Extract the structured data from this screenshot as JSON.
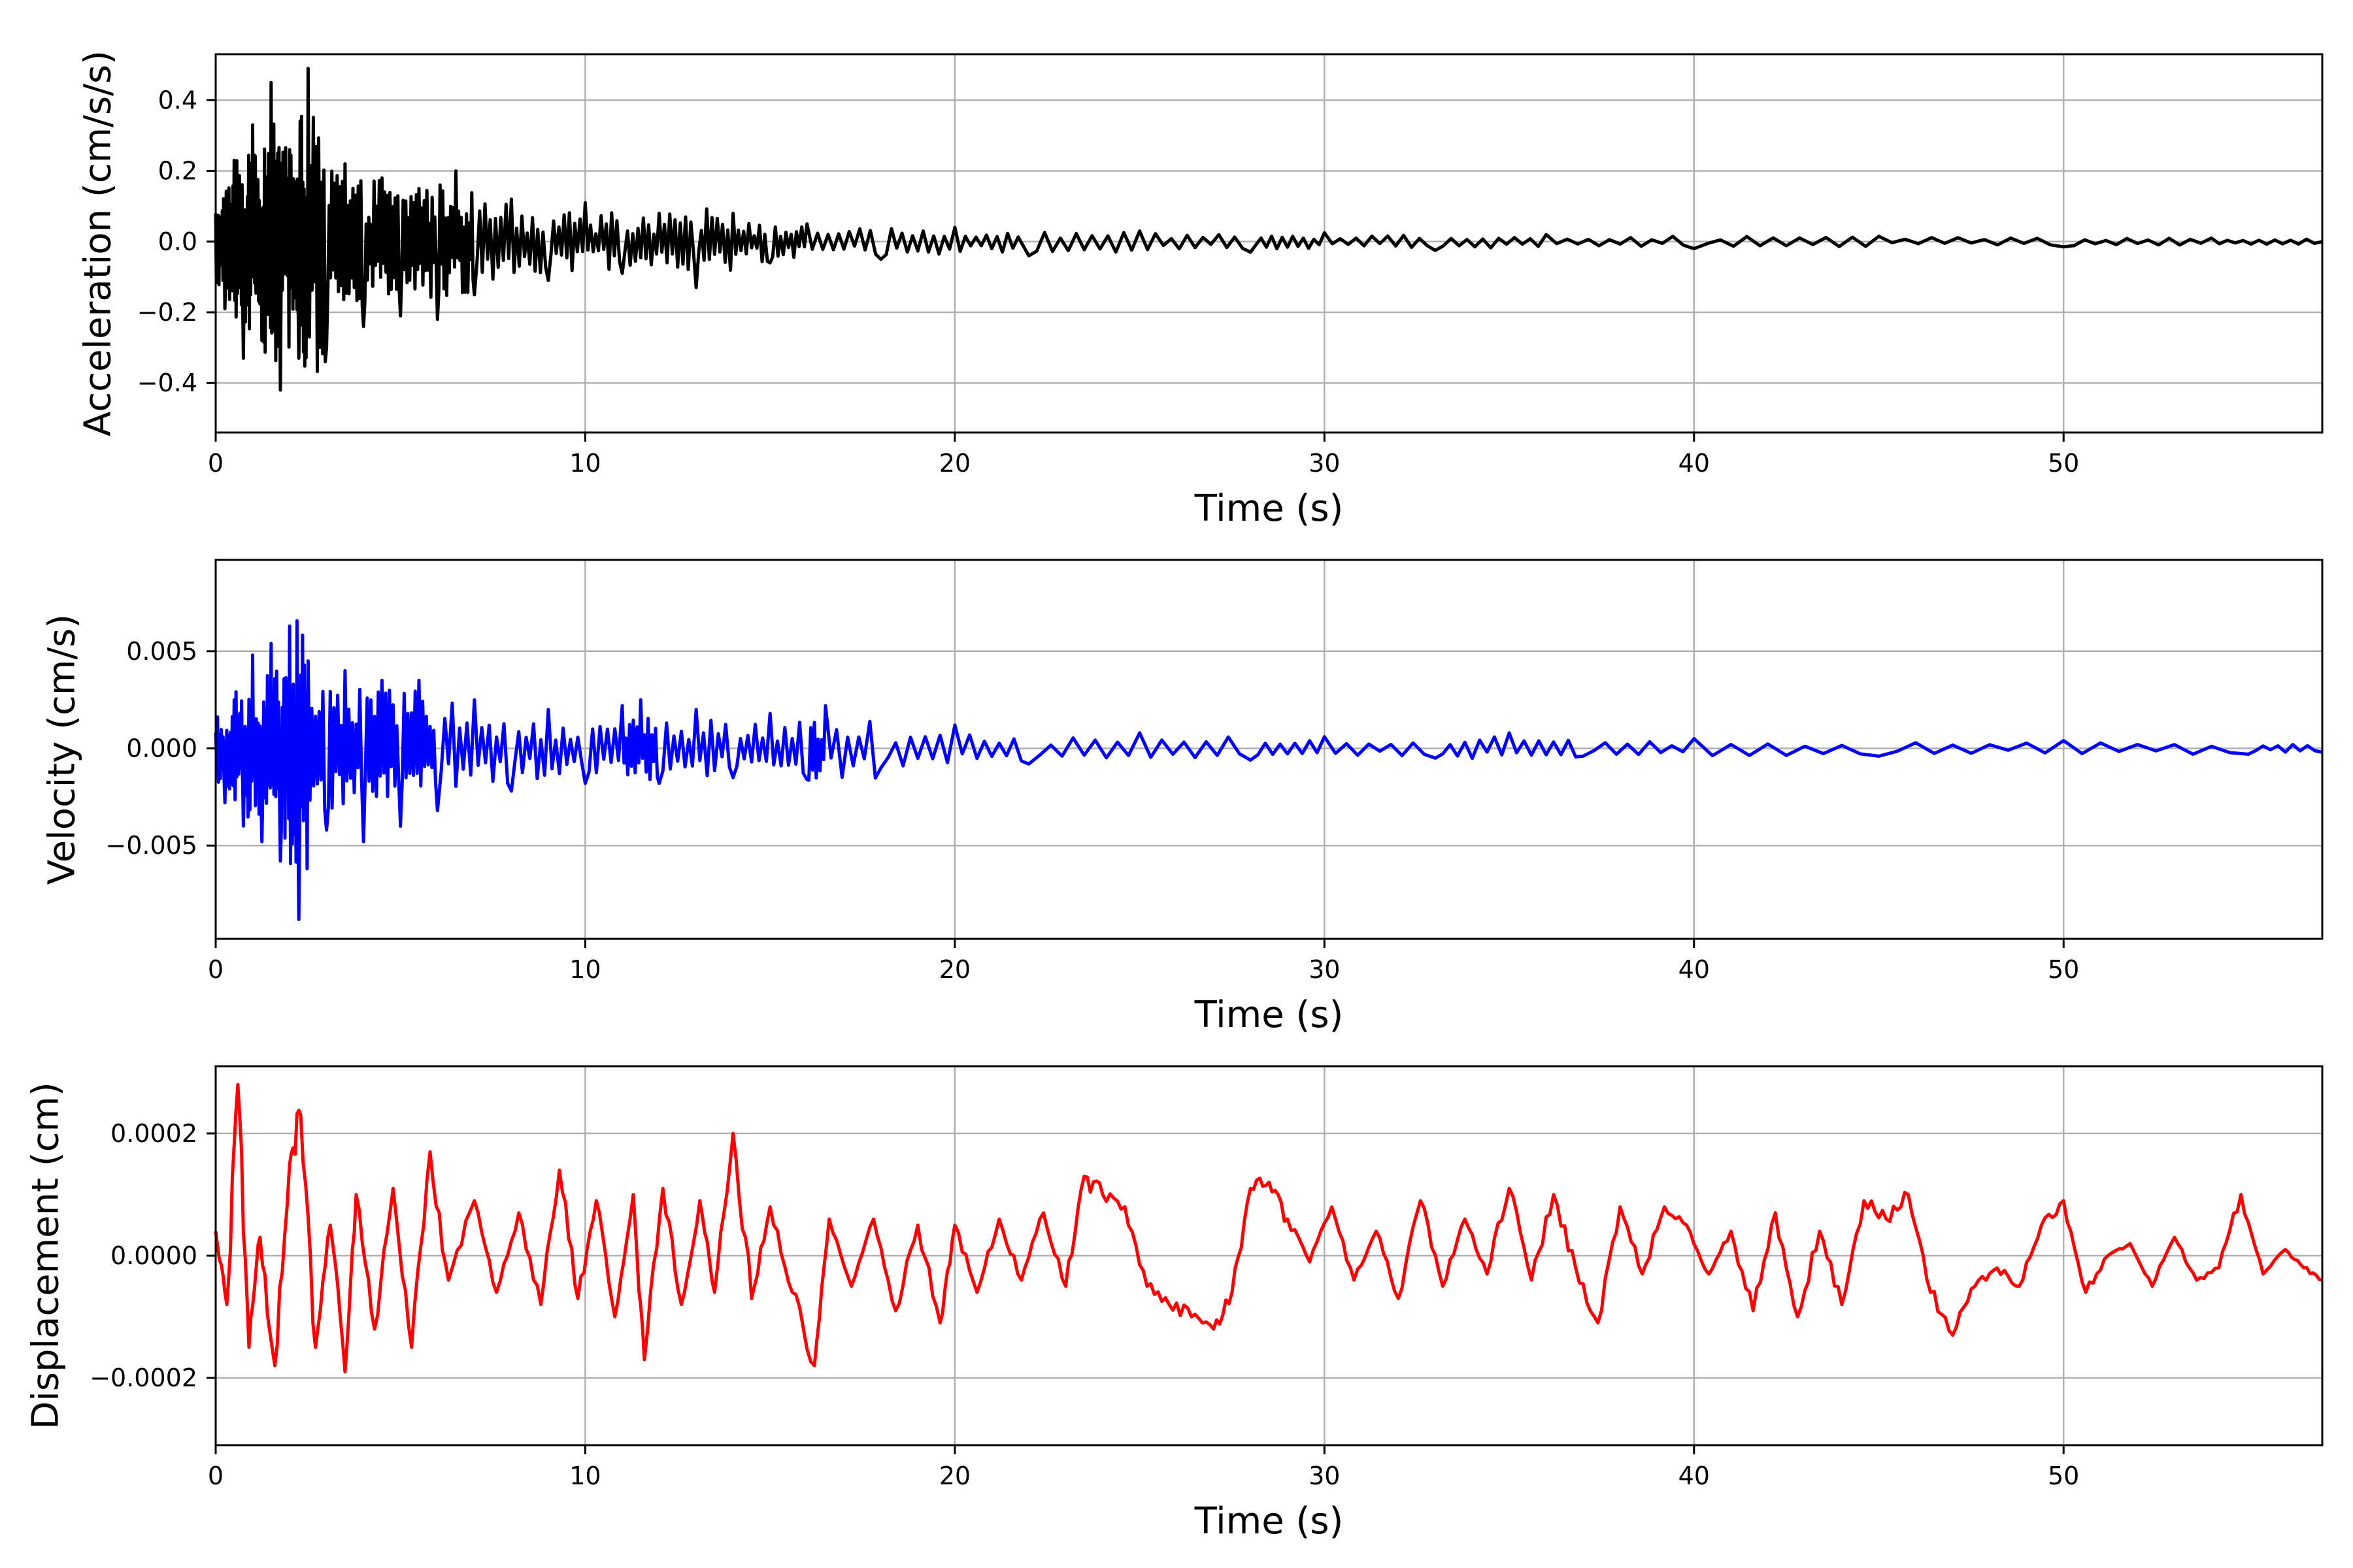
{
  "chart_data": [
    {
      "type": "line",
      "xlabel": "Time (s)",
      "ylabel": "Acceleration (cm/s/s)",
      "xlim": [
        0,
        57
      ],
      "ylim": [
        -0.54,
        0.53
      ],
      "xticks": [
        0,
        10,
        20,
        30,
        40,
        50
      ],
      "xtick_labels": [
        "0",
        "10",
        "20",
        "30",
        "40",
        "50"
      ],
      "yticks": [
        -0.4,
        -0.2,
        0.0,
        0.2,
        0.4
      ],
      "ytick_labels": [
        "−0.4",
        "−0.2",
        "0.0",
        "0.2",
        "0.4"
      ],
      "grid": true,
      "color": "#000000",
      "series": [
        {
          "x": [
            0,
            0.25,
            0.5,
            0.75,
            1.0,
            1.25,
            1.5,
            1.75,
            2.0,
            2.25,
            2.5,
            3.0,
            3.5,
            4.0,
            4.5,
            5.0,
            5.5,
            6.0,
            6.5,
            7.0,
            8.0,
            9.0,
            10.0,
            11.0,
            12.0,
            13.0,
            14.0,
            15.0,
            16.0,
            18.0,
            20.0,
            22.0,
            25.0,
            28.0,
            30.0,
            33.0,
            36.0,
            40.0,
            45.0,
            50.0,
            54.0,
            57.0
          ],
          "values": [
            0.08,
            -0.19,
            0.23,
            -0.33,
            0.33,
            -0.28,
            0.45,
            -0.42,
            0.26,
            -0.33,
            0.49,
            -0.3,
            0.22,
            -0.24,
            0.18,
            -0.21,
            0.15,
            -0.22,
            0.2,
            -0.15,
            0.12,
            -0.11,
            0.11,
            -0.09,
            0.08,
            -0.13,
            0.08,
            -0.06,
            0.05,
            -0.05,
            0.04,
            -0.04,
            0.03,
            -0.03,
            0.025,
            -0.025,
            0.02,
            -0.02,
            0.015,
            -0.015,
            0.01,
            0.0
          ]
        }
      ]
    },
    {
      "type": "line",
      "xlabel": "Time (s)",
      "ylabel": "Velocity (cm/s)",
      "xlim": [
        0,
        57
      ],
      "ylim": [
        -0.0098,
        0.0097
      ],
      "xticks": [
        0,
        10,
        20,
        30,
        40,
        50
      ],
      "xtick_labels": [
        "0",
        "10",
        "20",
        "30",
        "40",
        "50"
      ],
      "yticks": [
        -0.005,
        0.0,
        0.005
      ],
      "ytick_labels": [
        "−0.005",
        "0.000",
        "0.005"
      ],
      "grid": true,
      "color": "#0000ff",
      "series": [
        {
          "x": [
            0,
            0.25,
            0.5,
            0.75,
            1.0,
            1.25,
            1.5,
            1.75,
            2.0,
            2.25,
            2.5,
            3.0,
            3.5,
            4.0,
            4.5,
            5.0,
            5.5,
            6.0,
            7.0,
            8.0,
            9.0,
            10.0,
            11.0,
            11.5,
            12.0,
            13.0,
            14.0,
            15.0,
            16.0,
            16.5,
            18.0,
            20.0,
            22.0,
            25.0,
            28.0,
            30.0,
            33.0,
            35.0,
            37.0,
            40.0,
            45.0,
            50.0,
            55.0,
            57.0
          ],
          "values": [
            0.0008,
            -0.0028,
            0.0025,
            -0.004,
            0.0048,
            -0.0048,
            0.0054,
            -0.0058,
            0.0063,
            -0.0088,
            0.0045,
            -0.0042,
            0.004,
            -0.0048,
            0.0035,
            -0.004,
            0.0035,
            -0.0032,
            0.0025,
            -0.0022,
            0.002,
            -0.0018,
            0.0022,
            0.0025,
            -0.0018,
            0.002,
            -0.0015,
            0.0018,
            -0.0016,
            0.0022,
            -0.001,
            0.0012,
            -0.0008,
            0.0008,
            -0.0006,
            0.0006,
            -0.0005,
            0.0008,
            -0.0004,
            0.0005,
            -0.0004,
            0.0004,
            -0.0003,
            -0.0002
          ]
        }
      ]
    },
    {
      "type": "line",
      "xlabel": "Time (s)",
      "ylabel": "Displacement (cm)",
      "xlim": [
        0,
        57
      ],
      "ylim": [
        -0.00031,
        0.00031
      ],
      "xticks": [
        0,
        10,
        20,
        30,
        40,
        50
      ],
      "xtick_labels": [
        "0",
        "10",
        "20",
        "30",
        "40",
        "50"
      ],
      "yticks": [
        -0.0002,
        0.0,
        0.0002
      ],
      "ytick_labels": [
        "−0.0002",
        "0.0000",
        "0.0002"
      ],
      "grid": true,
      "color": "#ff0000",
      "series": [
        {
          "x": [
            0,
            0.3,
            0.6,
            0.9,
            1.2,
            1.6,
            2.0,
            2.3,
            2.7,
            3.1,
            3.5,
            3.8,
            4.3,
            4.8,
            5.3,
            5.8,
            6.3,
            7.0,
            7.6,
            8.2,
            8.8,
            9.3,
            9.8,
            10.3,
            10.8,
            11.3,
            11.6,
            12.1,
            12.6,
            13.1,
            13.5,
            14.0,
            14.5,
            15.0,
            15.6,
            16.2,
            16.6,
            17.2,
            17.8,
            18.4,
            19.0,
            19.6,
            20.0,
            20.6,
            21.2,
            21.8,
            22.4,
            23.0,
            23.5,
            24.0,
            24.6,
            25.2,
            25.8,
            26.4,
            27.0,
            27.5,
            28.0,
            28.5,
            29.0,
            29.6,
            30.2,
            30.8,
            31.4,
            32.0,
            32.6,
            33.2,
            33.8,
            34.4,
            35.0,
            35.6,
            36.2,
            36.8,
            37.4,
            38.0,
            38.6,
            39.2,
            39.8,
            40.4,
            41.0,
            41.6,
            42.2,
            42.8,
            43.4,
            44.0,
            44.6,
            45.2,
            45.8,
            46.4,
            47.0,
            47.6,
            48.2,
            48.8,
            49.4,
            50.0,
            50.6,
            51.2,
            51.8,
            52.4,
            53.0,
            53.6,
            54.2,
            54.8,
            55.4,
            56.0,
            56.5,
            57.0
          ],
          "values": [
            4e-05,
            -8e-05,
            0.00028,
            -0.00015,
            3e-05,
            -0.00018,
            0.00015,
            0.00023,
            -0.00015,
            5e-05,
            -0.00019,
            0.0001,
            -0.00012,
            0.00011,
            -0.00015,
            0.00017,
            -4e-05,
            9e-05,
            -6e-05,
            7e-05,
            -8e-05,
            0.00014,
            -7e-05,
            9e-05,
            -0.0001,
            0.0001,
            -0.00017,
            0.00011,
            -8e-05,
            9e-05,
            -6e-05,
            0.0002,
            -7e-05,
            8e-05,
            -6e-05,
            -0.00018,
            6e-05,
            -5e-05,
            6e-05,
            -9e-05,
            5e-05,
            -0.00011,
            5e-05,
            -6e-05,
            6e-05,
            -4e-05,
            7e-05,
            -5e-05,
            0.00013,
            0.0001,
            8e-05,
            -5e-05,
            -8e-05,
            -0.0001,
            -0.00012,
            -6e-05,
            0.00011,
            0.00012,
            6e-05,
            -1e-05,
            8e-05,
            -4e-05,
            4e-05,
            -7e-05,
            9e-05,
            -5e-05,
            6e-05,
            -3e-05,
            0.00011,
            -4e-05,
            0.0001,
            -2e-05,
            -0.00011,
            8e-05,
            -3e-05,
            8e-05,
            5e-05,
            -3e-05,
            4e-05,
            -9e-05,
            7e-05,
            -0.0001,
            4e-05,
            -8e-05,
            9e-05,
            6e-05,
            0.0001,
            -6e-05,
            -0.00013,
            -5e-05,
            -2e-05,
            -5e-05,
            5e-05,
            9e-05,
            -6e-05,
            0.0,
            2e-05,
            -5e-05,
            3e-05,
            -4e-05,
            -2e-05,
            0.0001,
            -3e-05,
            1e-05,
            -2e-05,
            -4e-05
          ]
        }
      ]
    }
  ]
}
